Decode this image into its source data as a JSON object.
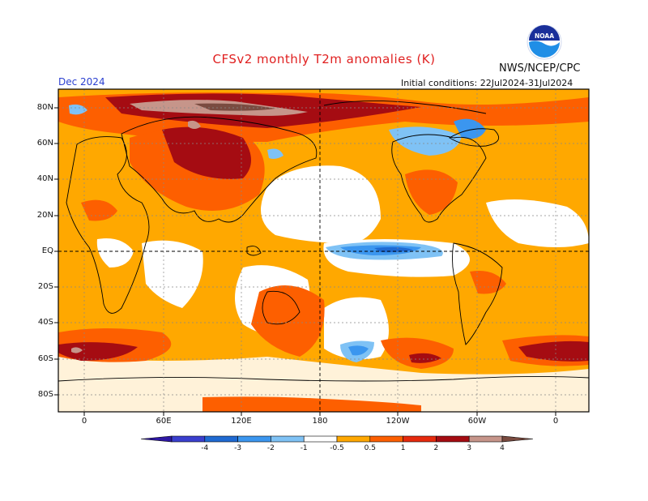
{
  "header": {
    "title": "CFSv2 monthly T2m anomalies (K)",
    "agency": "NWS/NCEP/CPC",
    "period": "Dec 2024",
    "initial_conditions": "Initial conditions: 22Jul2024-31Jul2024",
    "logo_text": "NOAA"
  },
  "axes": {
    "lat_labels": [
      "80N",
      "60N",
      "40N",
      "20N",
      "EQ",
      "20S",
      "40S",
      "60S",
      "80S"
    ],
    "lon_labels": [
      "0",
      "60E",
      "120E",
      "180",
      "120W",
      "60W",
      "0"
    ]
  },
  "legend": {
    "labels": [
      "-4",
      "-3",
      "-2",
      "-1",
      "-0.5",
      "0.5",
      "1",
      "2",
      "3",
      "4"
    ],
    "colors": [
      "#2e18a4",
      "#3a3fce",
      "#1f6ad2",
      "#3b96ef",
      "#7fc2f5",
      "#ffffff",
      "#ffa800",
      "#fd5f00",
      "#e62a0d",
      "#a50c12",
      "#c6958a",
      "#7a4b40"
    ]
  },
  "colors": {
    "background": "#ffffff",
    "title": "#e02020",
    "period": "#2a3fd0"
  }
}
